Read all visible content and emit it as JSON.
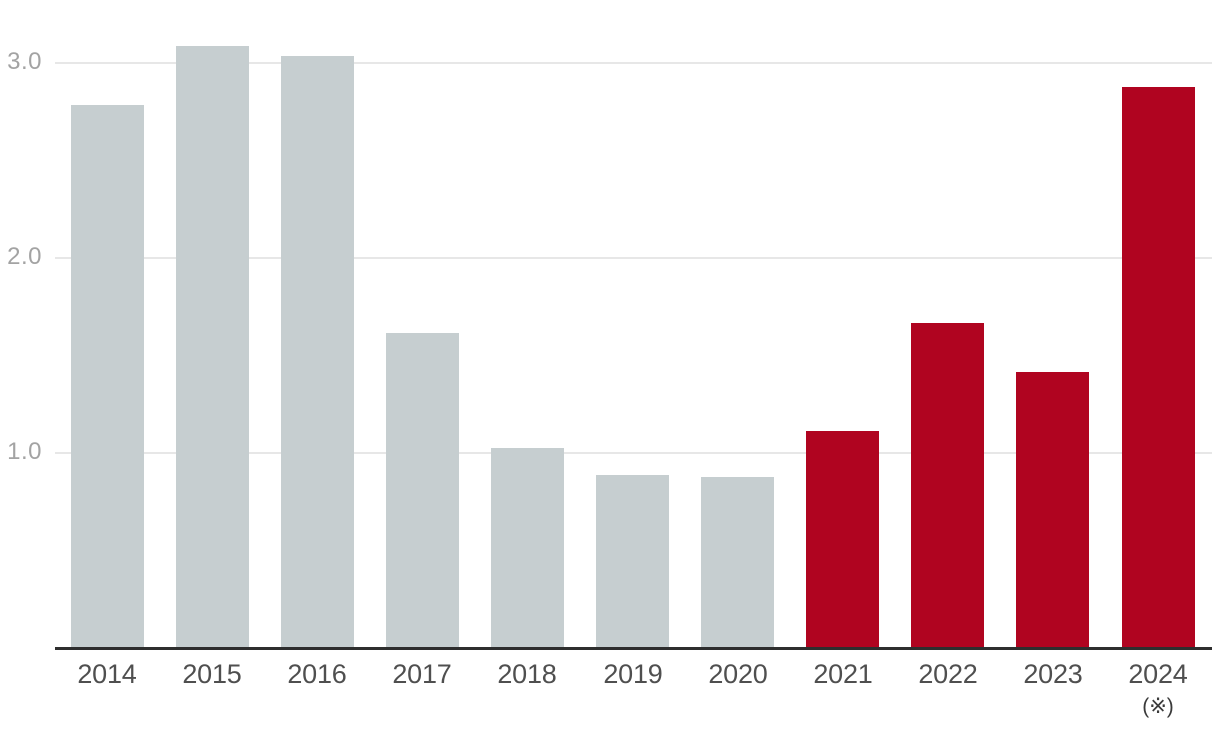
{
  "chart_data": {
    "type": "bar",
    "categories": [
      "2014",
      "2015",
      "2016",
      "2017",
      "2018",
      "2019",
      "2020",
      "2021",
      "2022",
      "2023",
      "2024"
    ],
    "values": [
      2.78,
      3.08,
      3.03,
      1.61,
      1.02,
      0.88,
      0.87,
      1.11,
      1.66,
      1.41,
      2.87
    ],
    "bar_colors": [
      "#c6ced0",
      "#c6ced0",
      "#c6ced0",
      "#c6ced0",
      "#c6ced0",
      "#c6ced0",
      "#c6ced0",
      "#b00420",
      "#b00420",
      "#b00420",
      "#b00420"
    ],
    "highlighted_categories": [
      "2021",
      "2022",
      "2023",
      "2024"
    ],
    "ytick_labels": [
      "1.0",
      "2.0",
      "3.0"
    ],
    "ytick_values": [
      1.0,
      2.0,
      3.0
    ],
    "ylim": [
      0,
      3.2
    ],
    "grid": "horizontal",
    "legend": "none",
    "x_annotation": {
      "category": "2024",
      "label": "(※)"
    },
    "colors": {
      "default_bar": "#c6ced0",
      "highlight_bar": "#b00420",
      "gridline": "#e7e7e7",
      "axis_line": "#2e2e2e",
      "x_label_text": "#4f4f4f",
      "y_label_text": "#a3a3a3",
      "annotation_text": "#3a3a3a",
      "background": "#ffffff"
    }
  }
}
